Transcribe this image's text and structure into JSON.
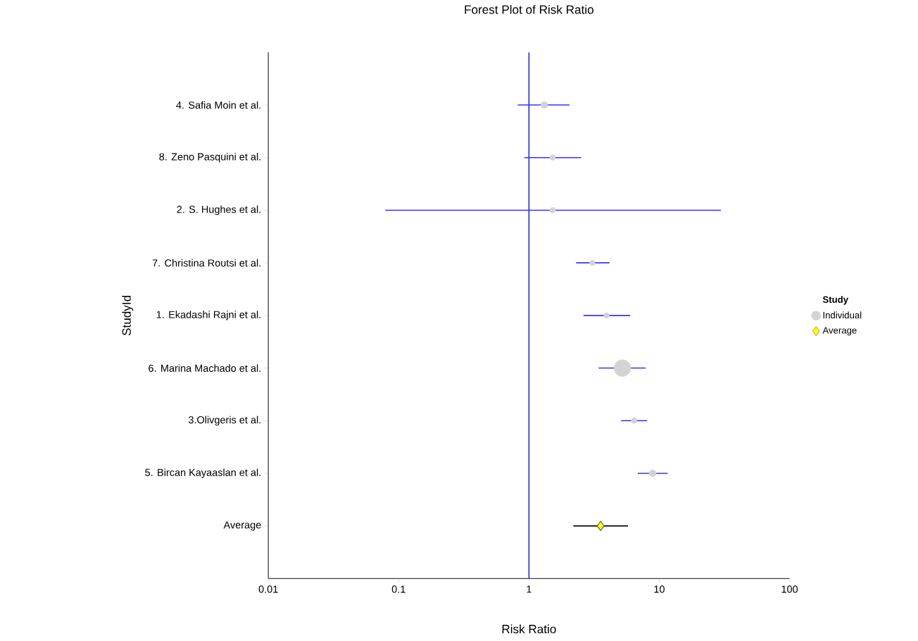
{
  "chart_data": {
    "type": "bubble",
    "title": "Forest Plot of Risk Ratio",
    "xlabel": "Risk Ratio",
    "ylabel": "StudyId",
    "legend_title": "Study",
    "orientation": "horizontal",
    "categories": [
      "4. Safia Moin et al.",
      "8. Zeno Pasquini et al.",
      "2. S. Hughes et al.",
      "7. Christina Routsi et al.",
      "1. Ekadashi Rajni et al.",
      "6. Marina Machado et al.",
      "3.Olivgeris et al.",
      "5. Bircan Kayaaslan et al.",
      "Average"
    ],
    "log": "x",
    "xlim": [
      0.01,
      100
    ],
    "xticks": [
      0.01,
      0.1,
      1,
      10,
      100
    ],
    "legend": "right",
    "ref_lines": [
      {
        "axis": "x",
        "value": 1,
        "color": "#4b4bc8"
      }
    ],
    "series": [
      {
        "name": "Individual",
        "marker": "circle",
        "color": "#d3d3d3",
        "values": [
          1.31,
          1.52,
          1.52,
          3.07,
          3.94,
          5.22,
          6.41,
          8.9,
          null
        ],
        "sizes": [
          0.17,
          0.11,
          0.11,
          0.11,
          0.11,
          1,
          0.11,
          0.17,
          null
        ],
        "errors": [
          [
            0.82,
            2.05
          ],
          [
            0.92,
            2.52
          ],
          [
            0.079,
            29.7
          ],
          [
            2.3,
            4.15
          ],
          [
            2.62,
            5.97
          ],
          [
            3.42,
            7.87
          ],
          [
            5.09,
            8.07
          ],
          [
            6.84,
            11.6
          ],
          null
        ]
      },
      {
        "name": "Average",
        "type": "scatter",
        "marker": "diamond",
        "color": "#ffff00",
        "values": [
          null,
          null,
          null,
          null,
          null,
          null,
          null,
          null,
          3.55
        ],
        "errors": [
          null,
          null,
          null,
          null,
          null,
          null,
          null,
          null,
          [
            2.19,
            5.76
          ]
        ]
      }
    ]
  }
}
